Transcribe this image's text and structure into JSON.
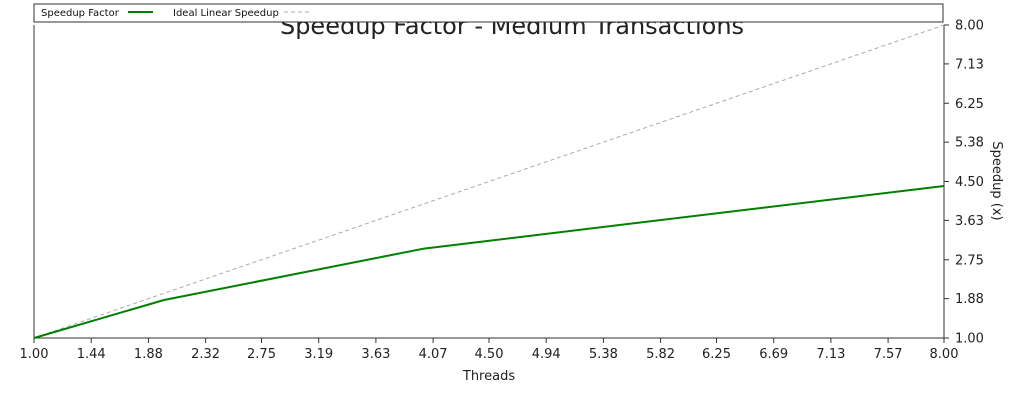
{
  "chart_data": {
    "type": "line",
    "title": "Speedup Factor - Medium Transactions",
    "xlabel": "Threads",
    "ylabel": "Speedup (x)",
    "xlim": [
      1.0,
      8.0
    ],
    "ylim": [
      1.0,
      8.0
    ],
    "x_ticks": [
      "1.00",
      "1.44",
      "1.88",
      "2.32",
      "2.75",
      "3.19",
      "3.63",
      "4.07",
      "4.50",
      "4.94",
      "5.38",
      "5.82",
      "6.25",
      "6.69",
      "7.13",
      "7.57",
      "8.00"
    ],
    "y_ticks": [
      "1.00",
      "1.88",
      "2.75",
      "3.63",
      "4.50",
      "5.38",
      "6.25",
      "7.13",
      "8.00"
    ],
    "y_axis_side": "right",
    "grid": false,
    "legend_position": "top",
    "series": [
      {
        "name": "Speedup Factor",
        "color": "#008000",
        "style": "solid",
        "x": [
          1,
          2,
          4,
          8
        ],
        "y": [
          1.0,
          1.85,
          3.0,
          4.4
        ]
      },
      {
        "name": "Ideal Linear Speedup",
        "color": "#aaaaaa",
        "style": "dashed",
        "x": [
          1,
          8
        ],
        "y": [
          1.0,
          8.0
        ]
      }
    ]
  }
}
